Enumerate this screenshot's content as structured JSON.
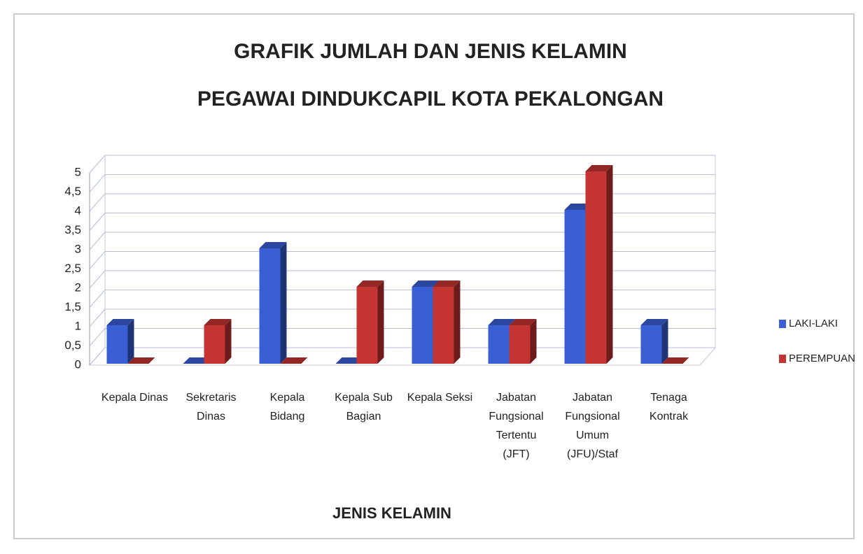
{
  "chart_data": {
    "type": "bar",
    "title": [
      "GRAFIK JUMLAH DAN JENIS KELAMIN",
      "PEGAWAI DINDUKCAPIL KOTA PEKALONGAN"
    ],
    "xlabel": "JENIS KELAMIN",
    "categories": [
      "Kepala Dinas",
      "Sekretaris Dinas",
      "Kepala Bidang",
      "Kepala Sub Bagian",
      "Kepala Seksi",
      "Jabatan Fungsional Tertentu (JFT)",
      "Jabatan Fungsional Umum (JFU)/Staf",
      "Tenaga Kontrak"
    ],
    "series": [
      {
        "name": "LAKI-LAKI",
        "color": "#3a5fd4",
        "values": [
          1,
          0,
          3,
          0,
          2,
          1,
          4,
          1
        ]
      },
      {
        "name": "PEREMPUAN",
        "color": "#c43432",
        "values": [
          0,
          1,
          0,
          2,
          2,
          1,
          5,
          0
        ]
      }
    ],
    "ylim": [
      0,
      5
    ],
    "yticks": [
      0,
      {
        "value": 0.5,
        "label": "0,5"
      },
      1,
      {
        "value": 1.5,
        "label": "1,5"
      },
      2,
      {
        "value": 2.5,
        "label": "2,5"
      },
      3,
      {
        "value": 3.5,
        "label": "3,5"
      },
      4,
      {
        "value": 4.5,
        "label": "4,5"
      },
      5
    ],
    "grid": true,
    "legend": "right"
  }
}
